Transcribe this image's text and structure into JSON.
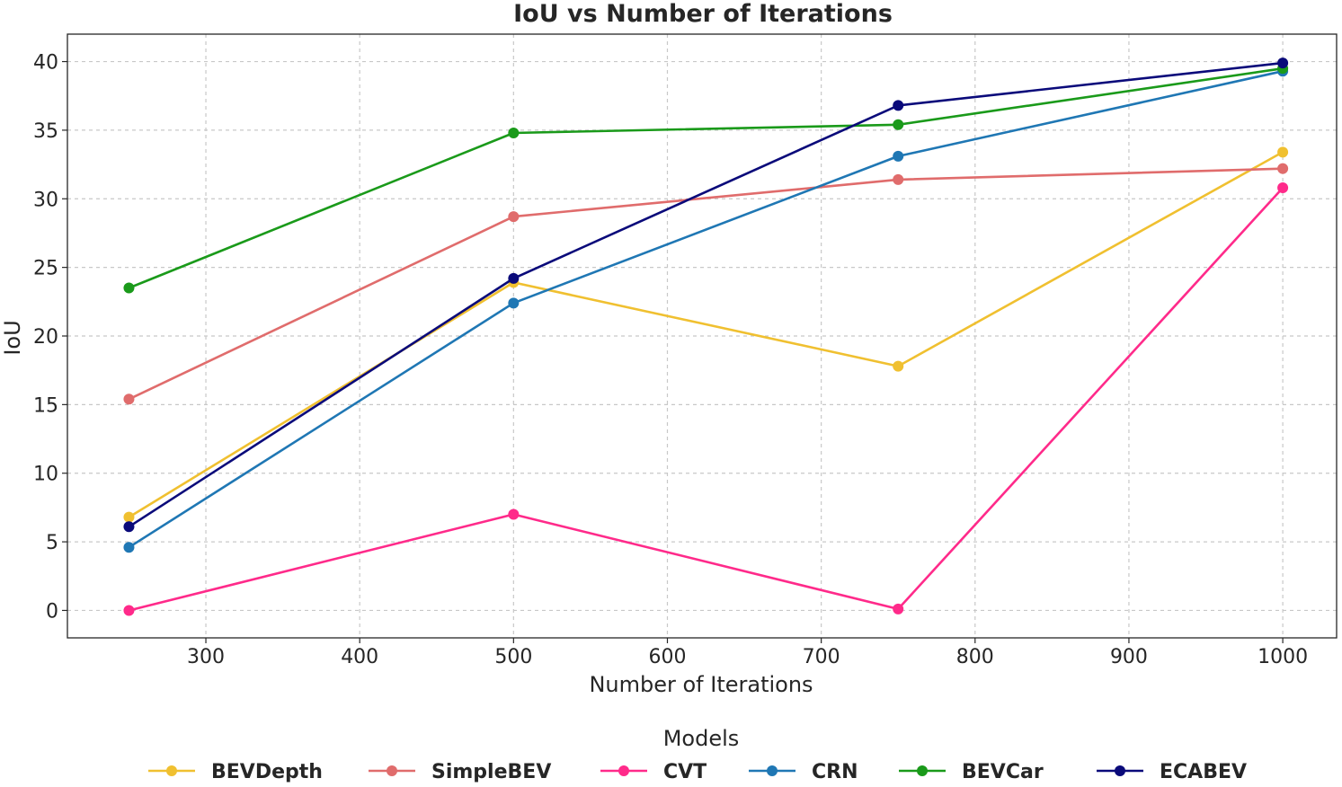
{
  "chart_data": {
    "type": "line",
    "title": "IoU vs Number of Iterations",
    "xlabel": "Number of Iterations",
    "ylabel": "IoU",
    "x": [
      250,
      500,
      750,
      1000
    ],
    "xlim": [
      210,
      1035
    ],
    "ylim": [
      -2,
      42
    ],
    "xticks": [
      300,
      400,
      500,
      600,
      700,
      800,
      900,
      1000
    ],
    "yticks": [
      0,
      5,
      10,
      15,
      20,
      25,
      30,
      35,
      40
    ],
    "grid": true,
    "legend_title": "Models",
    "legend_position": "bottom-center",
    "series": [
      {
        "name": "BEVDepth",
        "color": "#f0c030",
        "values": [
          6.8,
          23.9,
          17.8,
          33.4
        ]
      },
      {
        "name": "SimpleBEV",
        "color": "#e06c6c",
        "values": [
          15.4,
          28.7,
          31.4,
          32.2
        ]
      },
      {
        "name": "CVT",
        "color": "#ff2a8a",
        "values": [
          0.0,
          7.0,
          0.1,
          30.8
        ]
      },
      {
        "name": "CRN",
        "color": "#1f77b4",
        "values": [
          4.6,
          22.4,
          33.1,
          39.3
        ]
      },
      {
        "name": "BEVCar",
        "color": "#1a9a1a",
        "values": [
          23.5,
          34.8,
          35.4,
          39.5
        ]
      },
      {
        "name": "ECABEV",
        "color": "#0a0a7a",
        "values": [
          6.1,
          24.2,
          36.8,
          39.9
        ]
      }
    ]
  }
}
